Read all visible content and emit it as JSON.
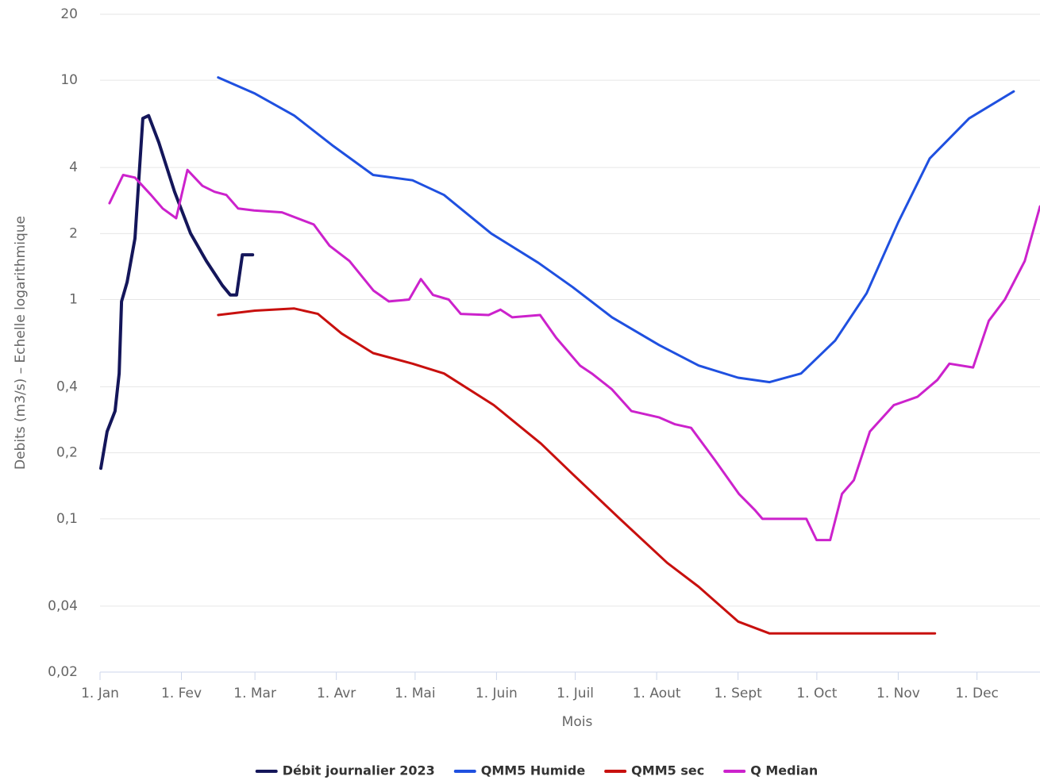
{
  "chart_data": {
    "type": "line",
    "y_label": "Debits (m3/s) – Echelle logarithmique",
    "x_label": "Mois",
    "log_y": true,
    "grid": true,
    "legend": "bottom",
    "xlim": [
      0,
      358
    ],
    "xticks": [
      {
        "value": 0,
        "label": "1. Jan"
      },
      {
        "value": 31,
        "label": "1. Fev"
      },
      {
        "value": 59,
        "label": "1. Mar"
      },
      {
        "value": 90,
        "label": "1. Avr"
      },
      {
        "value": 120,
        "label": "1. Mai"
      },
      {
        "value": 151,
        "label": "1. Juin"
      },
      {
        "value": 181,
        "label": "1. Juil"
      },
      {
        "value": 212,
        "label": "1. Aout"
      },
      {
        "value": 243,
        "label": "1. Sept"
      },
      {
        "value": 273,
        "label": "1. Oct"
      },
      {
        "value": 304,
        "label": "1. Nov"
      },
      {
        "value": 334,
        "label": "1. Dec"
      }
    ],
    "ylim": [
      0.02,
      20
    ],
    "yticks": [
      {
        "value": 0.02,
        "label": "0,02"
      },
      {
        "value": 0.04,
        "label": "0,04"
      },
      {
        "value": 0.1,
        "label": "0,1"
      },
      {
        "value": 0.2,
        "label": "0,2"
      },
      {
        "value": 0.4,
        "label": "0,4"
      },
      1,
      2,
      4,
      10,
      20
    ],
    "series": [
      {
        "name": "Débit journalier 2023",
        "color": "#14165a",
        "width": 4,
        "x": [
          0.3,
          2.7,
          5.7,
          7.3,
          8.2,
          10.3,
          13.3,
          16.3,
          18.5,
          22.4,
          28.4,
          34.5,
          40.5,
          46.6,
          49.6,
          52,
          54.2,
          58.1
        ],
        "values": [
          0.17,
          0.25,
          0.31,
          0.46,
          0.98,
          1.2,
          1.9,
          6.7,
          6.9,
          5.2,
          3.1,
          2.0,
          1.5,
          1.16,
          1.05,
          1.05,
          1.6,
          1.6
        ]
      },
      {
        "name": "QMM5 Humide",
        "color": "#1f50e0",
        "width": 3,
        "x": [
          45,
          59,
          74,
          89,
          104,
          119,
          131,
          149,
          167,
          180,
          195,
          213,
          228,
          243,
          255,
          267,
          280,
          292,
          304,
          316,
          331,
          348
        ],
        "values": [
          10.3,
          8.7,
          6.9,
          5.0,
          3.7,
          3.5,
          3.0,
          2.0,
          1.47,
          1.14,
          0.83,
          0.62,
          0.5,
          0.44,
          0.42,
          0.46,
          0.65,
          1.07,
          2.25,
          4.4,
          6.7,
          8.9
        ]
      },
      {
        "name": "QMM5 sec",
        "color": "#c8100e",
        "width": 3,
        "x": [
          45,
          59,
          74,
          83,
          92,
          104,
          119,
          131,
          150,
          168,
          180,
          198,
          216,
          228,
          243,
          255,
          318
        ],
        "values": [
          0.85,
          0.89,
          0.91,
          0.86,
          0.7,
          0.57,
          0.51,
          0.46,
          0.33,
          0.22,
          0.16,
          0.1,
          0.063,
          0.049,
          0.034,
          0.03,
          0.03
        ]
      },
      {
        "name": "Q Median",
        "color": "#cc22cc",
        "width": 3,
        "x": [
          3.6,
          8.8,
          13.3,
          19.4,
          23.9,
          29,
          33.3,
          39,
          43.6,
          48.1,
          52.6,
          58.7,
          69.3,
          81.4,
          87.4,
          95,
          104.1,
          110,
          117.7,
          122.2,
          126.8,
          132.8,
          137.4,
          148,
          152.5,
          157,
          167.6,
          173.7,
          182.8,
          187.3,
          194.9,
          202.4,
          213,
          219,
          225.1,
          234.2,
          243.3,
          249.3,
          252.3,
          269,
          272.9,
          278.1,
          282.6,
          287.1,
          293.2,
          302.3,
          311.3,
          318.9,
          323.5,
          332.5,
          338.5,
          344.6,
          352.2,
          358
        ],
        "values": [
          2.75,
          3.7,
          3.6,
          3.0,
          2.6,
          2.35,
          3.9,
          3.3,
          3.1,
          3.0,
          2.6,
          2.55,
          2.5,
          2.2,
          1.76,
          1.5,
          1.1,
          0.98,
          1.0,
          1.24,
          1.05,
          1.0,
          0.86,
          0.85,
          0.9,
          0.83,
          0.85,
          0.67,
          0.5,
          0.46,
          0.39,
          0.31,
          0.29,
          0.27,
          0.26,
          0.185,
          0.13,
          0.11,
          0.1,
          0.1,
          0.08,
          0.08,
          0.13,
          0.15,
          0.25,
          0.33,
          0.36,
          0.43,
          0.51,
          0.49,
          0.8,
          1.0,
          1.5,
          2.66
        ]
      }
    ]
  }
}
